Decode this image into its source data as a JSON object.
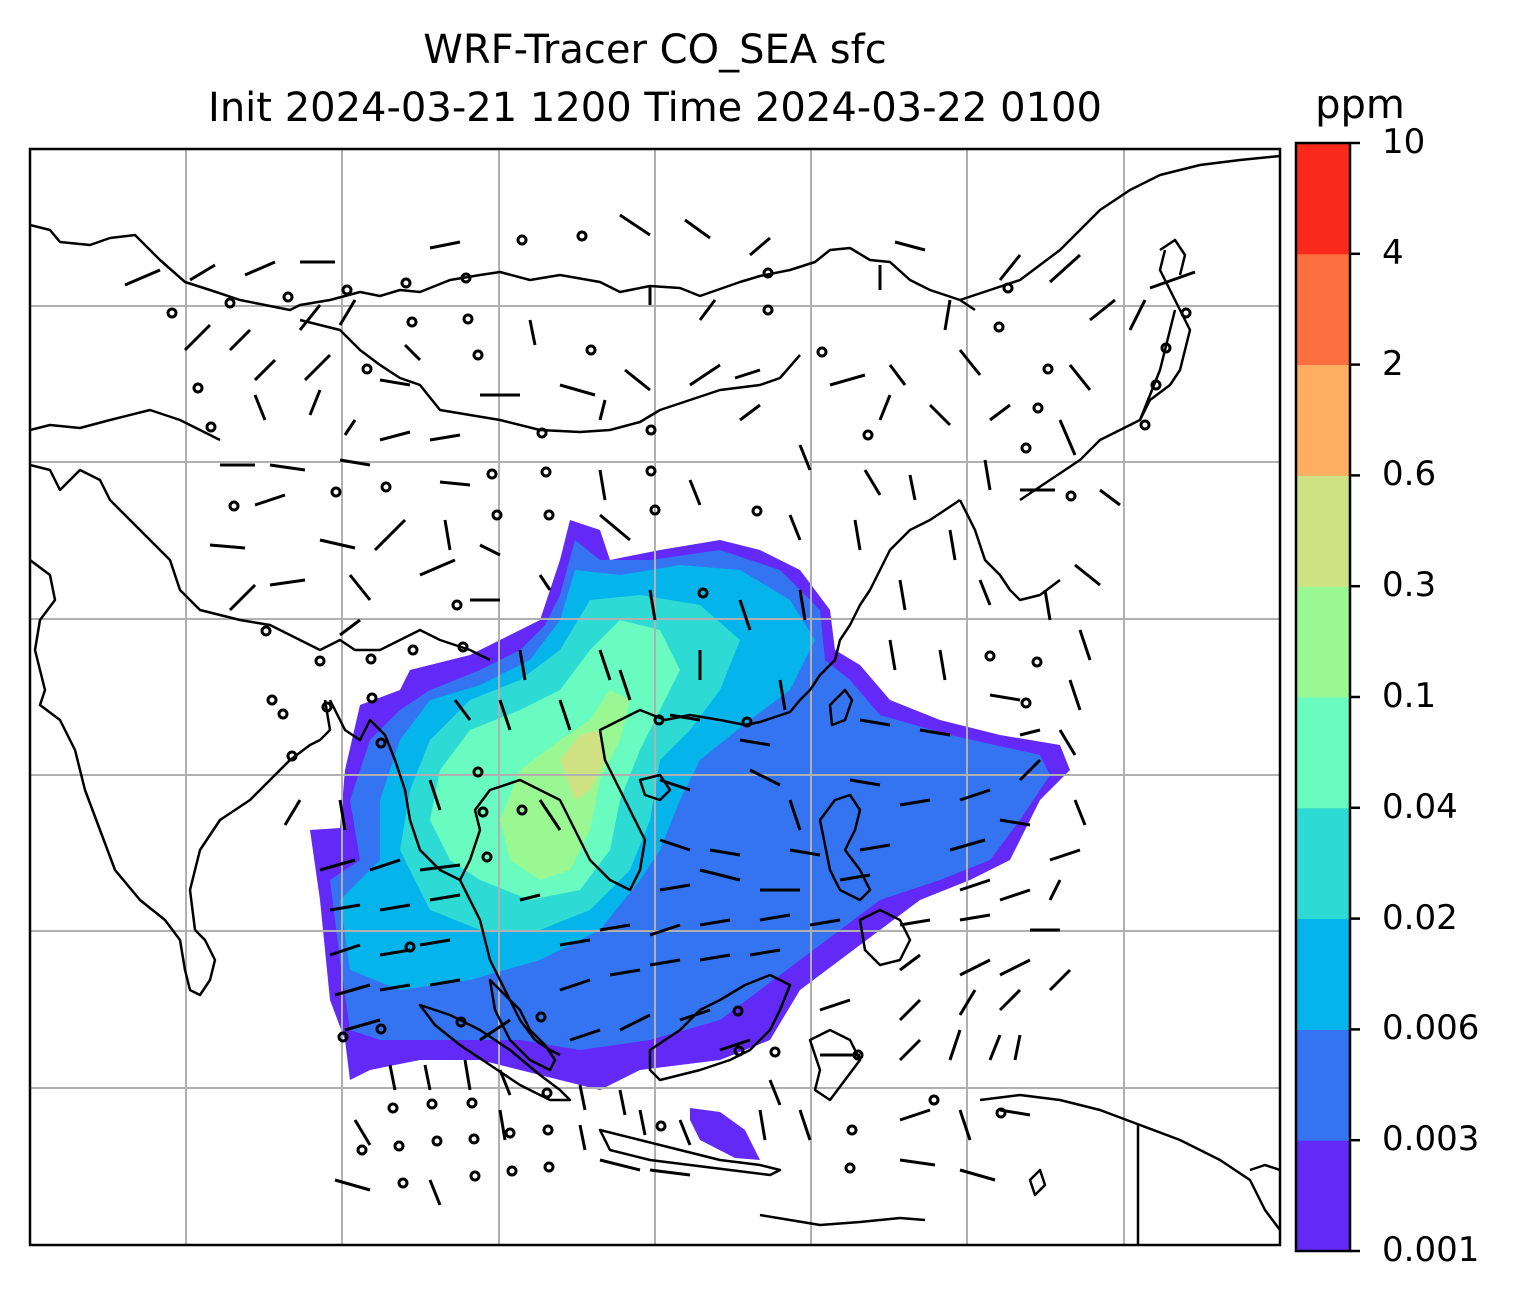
{
  "title": {
    "line1": "WRF-Tracer CO_SEA sfc",
    "line2": "Init 2024-03-21 1200 Time 2024-03-22 0100"
  },
  "colorbar": {
    "units": "ppm",
    "levels": [
      "0.001",
      "0.003",
      "0.006",
      "0.02",
      "0.04",
      "0.1",
      "0.3",
      "0.6",
      "2",
      "4",
      "10"
    ],
    "colors": [
      "#6329f6",
      "#3474f0",
      "#05b4eb",
      "#2ddbd4",
      "#69fbbf",
      "#9af893",
      "#d0e183",
      "#fdae61",
      "#fd6f3e",
      "#f92a1b"
    ]
  },
  "map": {
    "gridlines": true,
    "plume_colors": {
      "outer": "#6329f6",
      "band2": "#3474f0",
      "band3": "#05b4eb",
      "band4": "#2ddbd4",
      "band5": "#69fbbf",
      "band6": "#9af893",
      "core": "#d0e183"
    },
    "coastline_color": "#000000",
    "grid_color": "#b0b0b0",
    "wind_barbs": true
  }
}
